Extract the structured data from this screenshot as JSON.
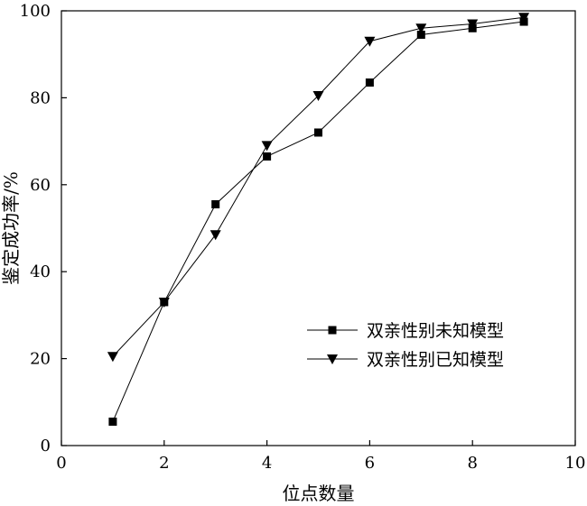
{
  "chart_data": {
    "type": "line",
    "xlabel": "位点数量",
    "ylabel": "鉴定成功率/%",
    "xlim": [
      0,
      10
    ],
    "ylim": [
      0,
      100
    ],
    "xticks": [
      "0",
      "2",
      "4",
      "6",
      "8",
      "10"
    ],
    "yticks": [
      "0",
      "20",
      "40",
      "60",
      "80",
      "100"
    ],
    "grid": false,
    "legend_position": "bottom-right",
    "series": [
      {
        "name": "双亲性别未知模型",
        "marker": "square",
        "x": [
          1,
          2,
          3,
          4,
          5,
          6,
          7,
          8,
          9
        ],
        "values": [
          5.5,
          33,
          55.5,
          66.5,
          72,
          83.5,
          94.5,
          96,
          97.5
        ]
      },
      {
        "name": "双亲性别已知模型",
        "marker": "triangle-down",
        "x": [
          1,
          2,
          3,
          4,
          5,
          6,
          7,
          8,
          9
        ],
        "values": [
          20.5,
          33,
          48.5,
          69,
          80.5,
          93,
          96,
          97,
          98.5
        ]
      }
    ]
  }
}
